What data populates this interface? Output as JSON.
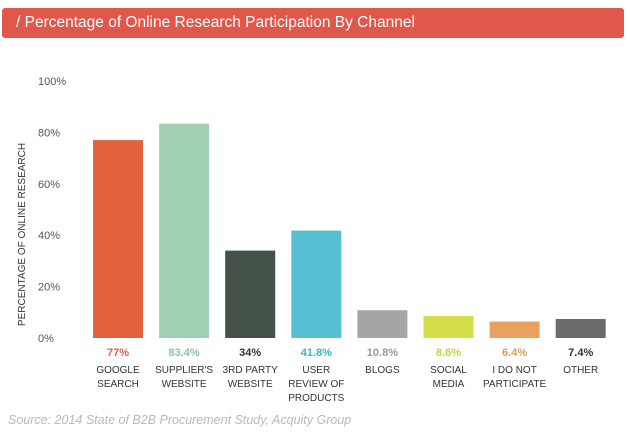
{
  "header": {
    "title": "/ Percentage of Online Research Participation By Channel",
    "color": "#e0584c"
  },
  "source": "Source: 2014 State of B2B Procurement Study, Acquity Group",
  "chart_data": {
    "type": "bar",
    "title": "/ Percentage of Online Research Participation By Channel",
    "ylabel": "PERCENTAGE OF ONLINE RESEARCH",
    "ylim": [
      0,
      100
    ],
    "yticks": [
      "0%",
      "20%",
      "40%",
      "60%",
      "80%",
      "100%"
    ],
    "grid": false,
    "categories": [
      [
        "GOOGLE",
        "SEARCH"
      ],
      [
        "SUPPLIER'S",
        "WEBSITE"
      ],
      [
        "3RD PARTY",
        "WEBSITE"
      ],
      [
        "USER",
        "REVIEW OF",
        "PRODUCTS"
      ],
      [
        "BLOGS"
      ],
      [
        "SOCIAL",
        "MEDIA"
      ],
      [
        "I DO NOT",
        "PARTICIPATE"
      ],
      [
        "OTHER"
      ]
    ],
    "values": [
      77,
      83.4,
      34,
      41.8,
      10.8,
      8.6,
      6.4,
      7.4
    ],
    "value_labels": [
      "77%",
      "83.4%",
      "34%",
      "41.8%",
      "10.8%",
      "8.6%",
      "6.4%",
      "7.4%"
    ],
    "colors": [
      "#e1623d",
      "#9dcfb0",
      "#435147",
      "#56bfd1",
      "#a5a5a5",
      "#d4de4a",
      "#eaa160",
      "#6b6b6b"
    ],
    "label_colors": [
      "#e1623d",
      "#8ac4a1",
      "#333333",
      "#3bb3c8",
      "#999999",
      "#c9d336",
      "#e39a50",
      "#333333"
    ]
  }
}
